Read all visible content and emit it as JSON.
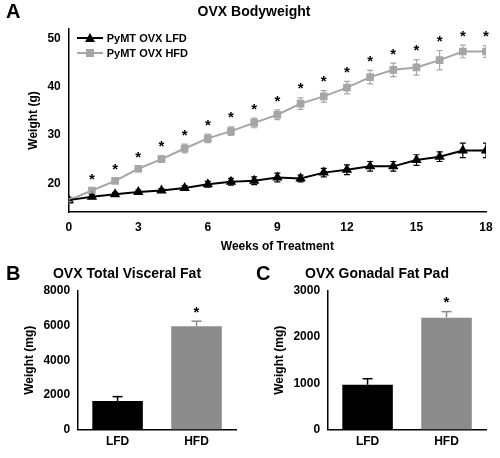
{
  "chart_data": [
    {
      "panel": "A",
      "type": "line",
      "title": "OVX Bodyweight",
      "x_label": "Weeks of Treatment",
      "y_label": "Weight (g)",
      "x": [
        0,
        1,
        2,
        3,
        4,
        5,
        6,
        7,
        8,
        9,
        10,
        11,
        12,
        13,
        14,
        15,
        16,
        17,
        18
      ],
      "xlim": [
        0,
        18
      ],
      "xticks": [
        0,
        3,
        6,
        9,
        12,
        15,
        18
      ],
      "ylim": [
        14,
        52
      ],
      "yticks": [
        20,
        30,
        40,
        50
      ],
      "grid": false,
      "legend": "upper left",
      "series": [
        {
          "name": "PyMT OVX LFD",
          "color": "#000000",
          "marker": "triangle",
          "values": [
            16.5,
            17.2,
            17.7,
            18.2,
            18.5,
            19.0,
            19.8,
            20.3,
            20.5,
            21.2,
            21.0,
            22.2,
            22.8,
            23.5,
            23.5,
            24.8,
            25.5,
            26.8,
            26.8
          ],
          "errors": [
            0.3,
            0.4,
            0.4,
            0.4,
            0.4,
            0.5,
            0.6,
            0.7,
            0.8,
            0.9,
            0.7,
            0.9,
            1.0,
            1.0,
            1.0,
            1.1,
            1.0,
            1.5,
            1.5
          ]
        },
        {
          "name": "PyMT OVX HFD",
          "color": "#a6a6a6",
          "marker": "square",
          "values": [
            16.5,
            18.5,
            20.5,
            23.0,
            25.0,
            27.2,
            29.3,
            30.8,
            32.5,
            34.2,
            36.5,
            38.0,
            39.8,
            42.0,
            43.5,
            44.0,
            45.5,
            47.3,
            47.3
          ],
          "errors": [
            0.3,
            0.5,
            0.5,
            0.6,
            0.7,
            0.9,
            0.9,
            0.9,
            1.0,
            1.0,
            1.2,
            1.2,
            1.3,
            1.4,
            1.4,
            1.6,
            2.0,
            1.3,
            1.2
          ],
          "annotations": [
            null,
            "*",
            "*",
            "*",
            "*",
            "*",
            "*",
            "*",
            "*",
            "*",
            "*",
            "*",
            "*",
            "*",
            "*",
            "*",
            "*",
            "*",
            "*"
          ]
        }
      ]
    },
    {
      "panel": "B",
      "type": "bar",
      "title": "OVX Total Visceral Fat",
      "y_label": "Weight (mg)",
      "categories": [
        "LFD",
        "HFD"
      ],
      "values": [
        1650,
        5950
      ],
      "errors": [
        250,
        300
      ],
      "colors": [
        "#000000",
        "#8c8c8c"
      ],
      "annotations": [
        null,
        "*"
      ],
      "ylim": [
        0,
        8000
      ],
      "yticks": [
        0,
        2000,
        4000,
        6000,
        8000
      ],
      "grid": false
    },
    {
      "panel": "C",
      "type": "bar",
      "title": "OVX Gonadal Fat Pad",
      "y_label": "Weight (mg)",
      "categories": [
        "LFD",
        "HFD"
      ],
      "values": [
        970,
        2420
      ],
      "errors": [
        130,
        130
      ],
      "colors": [
        "#000000",
        "#8c8c8c"
      ],
      "annotations": [
        null,
        "*"
      ],
      "ylim": [
        0,
        3000
      ],
      "yticks": [
        0,
        1000,
        2000,
        3000
      ],
      "grid": false
    }
  ]
}
